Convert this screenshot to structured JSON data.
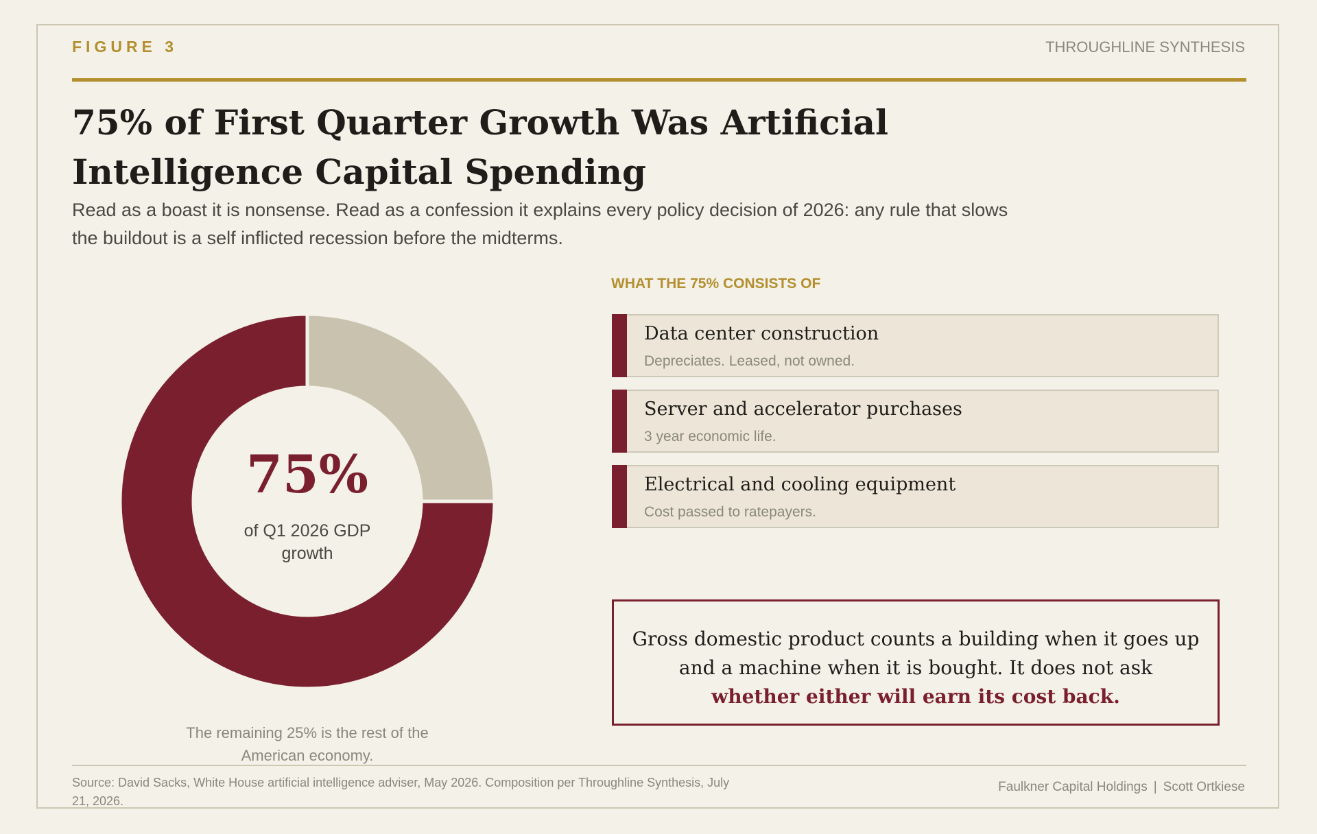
{
  "header": {
    "figure_label": "FIGURE 3",
    "brand": "THROUGHLINE SYNTHESIS"
  },
  "title": "75% of First Quarter Growth Was Artificial Intelligence Capital Spending",
  "subtitle": "Read as a boast it is nonsense. Read as a confession it explains every policy decision of 2026: any rule that slows the buildout is a self inflicted recession before the midterms.",
  "colors": {
    "primary": "#7a1f2e",
    "remainder": "#c9c2af",
    "gold": "#b38f2f",
    "background": "#f4f1e8"
  },
  "chart_data": {
    "type": "pie",
    "title": "",
    "center_value": "75%",
    "center_caption": "of Q1 2026 GDP growth",
    "series": [
      {
        "label": "AI capital spending",
        "value": 75,
        "color": "#7a1f2e"
      },
      {
        "label": "Rest of the American economy",
        "value": 25,
        "color": "#c9c2af"
      }
    ],
    "remainder_note": "The remaining 25% is the rest of the American economy."
  },
  "composition": {
    "section_label": "WHAT THE 75% CONSISTS OF",
    "items": [
      {
        "title": "Data center construction",
        "note": "Depreciates. Leased, not owned."
      },
      {
        "title": "Server and accelerator purchases",
        "note": "3 year economic life."
      },
      {
        "title": "Electrical and cooling equipment",
        "note": "Cost passed to ratepayers."
      }
    ]
  },
  "quote": {
    "text": "Gross domestic product counts a building when it goes up and a machine when it is bought. It does not ask",
    "emphasis": "whether either will earn its cost back."
  },
  "footer": {
    "source": "Source: David Sacks, White House artificial intelligence adviser, May 2026. Composition per Throughline Synthesis, July 21, 2026.",
    "org": "Faulkner Capital Holdings",
    "separator": "|",
    "author": "Scott Ortkiese"
  }
}
